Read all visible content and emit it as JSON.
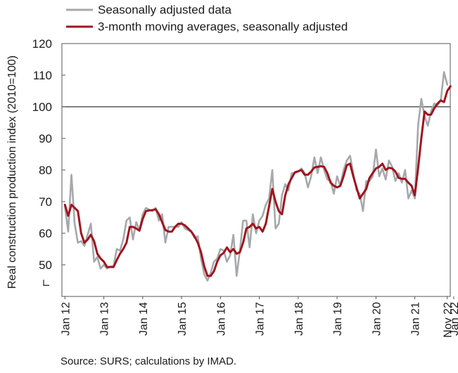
{
  "chart_data": {
    "type": "line",
    "ylabel": "Real construction production index (2010=100)",
    "ylim": [
      40,
      120
    ],
    "yticks": [
      50,
      60,
      70,
      80,
      90,
      100,
      110,
      120
    ],
    "y_axis_break": true,
    "reference_line": 100,
    "x_start": "Jan 12",
    "x_end": "Nov 22",
    "xticks": [
      "Jan 12",
      "Jan 13",
      "Jan 14",
      "Jan 15",
      "Jan 16",
      "Jan 17",
      "Jan 18",
      "Jan 19",
      "Jan 20",
      "Jan 21",
      "Jan 22",
      "Nov 22"
    ],
    "grid": false,
    "legend_position": "top-left",
    "series": [
      {
        "name": "Seasonally adjusted data",
        "color": "#a6a8ab",
        "values": [
          68.5,
          60.5,
          78.5,
          63,
          57,
          57.5,
          56,
          59.5,
          63,
          51,
          52.5,
          48.8,
          50,
          48.8,
          49.5,
          49.5,
          55,
          54.5,
          58,
          64,
          65,
          58,
          63.5,
          61,
          66,
          68,
          67.5,
          67,
          68,
          64,
          66,
          57,
          62,
          62,
          62,
          62,
          63.5,
          61.5,
          61,
          60.5,
          58.5,
          59,
          52,
          47,
          45,
          47.5,
          51,
          52,
          55,
          54.5,
          51,
          53,
          59.5,
          46.5,
          54.5,
          64,
          64,
          55.5,
          66,
          60,
          64,
          65.5,
          69,
          71,
          80,
          61.5,
          63,
          72,
          75.5,
          73.5,
          79,
          79,
          79.5,
          80.5,
          79,
          74.5,
          78,
          84,
          79,
          84,
          80,
          77,
          76.5,
          72.5,
          78,
          75,
          80,
          83,
          84.5,
          79,
          73.5,
          72.5,
          67,
          76.5,
          76.5,
          78,
          86.5,
          78,
          80.5,
          77,
          83,
          81,
          76.5,
          79,
          76,
          80,
          71,
          73.5,
          71,
          94,
          102.5,
          97,
          94,
          98.5,
          101,
          100.5,
          102,
          111,
          107
        ]
      },
      {
        "name": "3-month moving averages, seasonally adjusted",
        "color": "#a0141e",
        "values": [
          69,
          65.5,
          69,
          68,
          67,
          60,
          57,
          58,
          59.5,
          57.5,
          53.5,
          52,
          51,
          49.3,
          49.3,
          49.3,
          51.5,
          53.5,
          55,
          57,
          62,
          62,
          61.5,
          60.8,
          64.5,
          67,
          67.2,
          67.3,
          67.6,
          66,
          63.5,
          61,
          60.5,
          60.5,
          62,
          63,
          63,
          62.5,
          61.5,
          60.5,
          59,
          57,
          54,
          49.5,
          46.5,
          46.5,
          48,
          51,
          53,
          53.8,
          55.5,
          54,
          55,
          53.5,
          54,
          57,
          61.5,
          62,
          63,
          61.5,
          62,
          60.5,
          63,
          68.5,
          74,
          70,
          67,
          66,
          72,
          75.5,
          77.5,
          79.3,
          79.6,
          80,
          78.5,
          78.5,
          79.5,
          80.8,
          81,
          81.2,
          81,
          79,
          76,
          75,
          74.5,
          75,
          78,
          81.5,
          82,
          78,
          74.5,
          71,
          72.5,
          74,
          77.5,
          79,
          80.5,
          81,
          82,
          80,
          80.7,
          80.5,
          79.5,
          77.5,
          77.2,
          77.2,
          76,
          75,
          72,
          80.5,
          90,
          98.5,
          97.5,
          97.5,
          99.5,
          101,
          102,
          101.5,
          105,
          106.5
        ]
      }
    ]
  },
  "source_note": "Source: SURS; calculations by IMAD."
}
